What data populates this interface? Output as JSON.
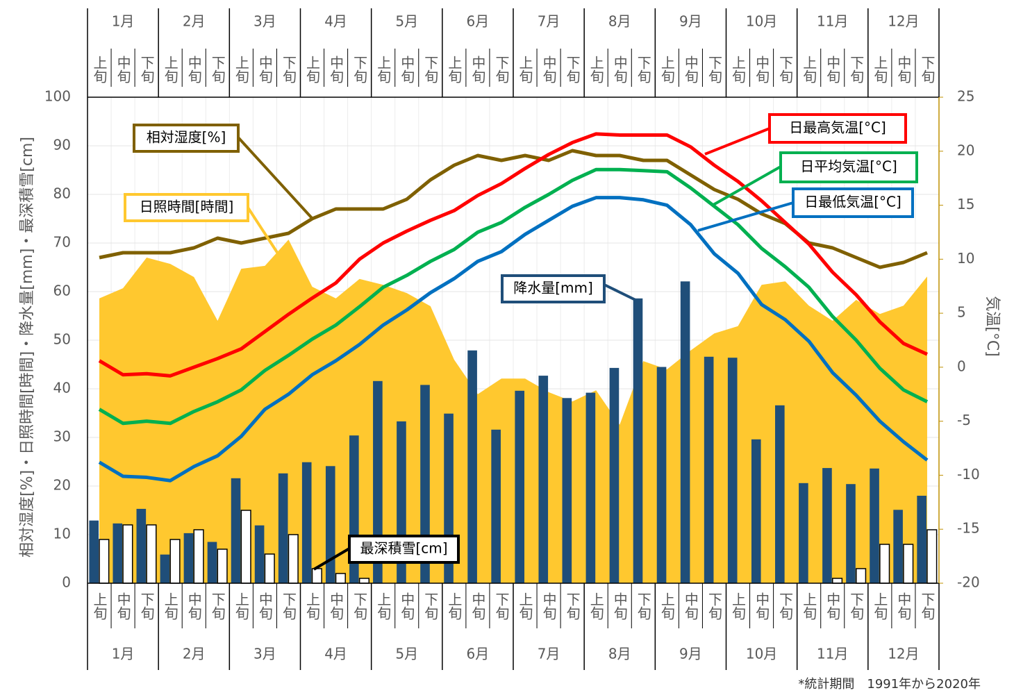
{
  "chart_data": {
    "type": "combo",
    "months": [
      "1月",
      "2月",
      "3月",
      "4月",
      "5月",
      "6月",
      "7月",
      "8月",
      "9月",
      "10月",
      "11月",
      "12月"
    ],
    "categories": [
      "上旬",
      "中旬",
      "下旬",
      "上旬",
      "中旬",
      "下旬",
      "上旬",
      "中旬",
      "下旬",
      "上旬",
      "中旬",
      "下旬",
      "上旬",
      "中旬",
      "下旬",
      "上旬",
      "中旬",
      "下旬",
      "上旬",
      "中旬",
      "下旬",
      "上旬",
      "中旬",
      "下旬",
      "上旬",
      "中旬",
      "下旬",
      "上旬",
      "中旬",
      "下旬",
      "上旬",
      "中旬",
      "下旬",
      "上旬",
      "中旬",
      "下旬"
    ],
    "y_label": "相対湿度[%]・日照時間[時間]・降水量[mm]・最深積雪[cm]",
    "y2_label": "気温[°C]",
    "footnote": "*統計期間　1991年から2020年",
    "ylim": [
      0,
      100
    ],
    "yticks": [
      0,
      10,
      20,
      30,
      40,
      50,
      60,
      70,
      80,
      90,
      100
    ],
    "y2lim": [
      -20,
      25
    ],
    "y2ticks": [
      -20,
      -15,
      -10,
      -5,
      0,
      5,
      10,
      15,
      20,
      25
    ],
    "grid": true,
    "series": [
      {
        "name": "日照時間[時間]",
        "type": "area",
        "color": "#ffc82f",
        "values": [
          58.6,
          60.7,
          67,
          65.7,
          63,
          54,
          64.7,
          65.3,
          70.7,
          61,
          58.6,
          62.6,
          61.4,
          59.7,
          57,
          46,
          38.9,
          42.1,
          42.1,
          39.3,
          37.4,
          39.7,
          32.6,
          45.7,
          44,
          47.9,
          51.4,
          52.9,
          61.4,
          62.1,
          57.1,
          54,
          58.3,
          55.4,
          57.1,
          63.1
        ]
      },
      {
        "name": "降水量[mm]",
        "type": "bar",
        "color": "#1f4e79",
        "values": [
          12.9,
          12.3,
          15.3,
          5.9,
          10.3,
          8.5,
          21.6,
          11.9,
          22.6,
          24.9,
          24.1,
          30.4,
          41.6,
          33.3,
          40.8,
          34.9,
          47.9,
          31.6,
          39.6,
          42.7,
          38.1,
          39.2,
          44.3,
          58.6,
          44.5,
          62.1,
          46.6,
          46.4,
          29.6,
          36.6,
          20.6,
          23.7,
          20.4,
          23.6,
          15.1,
          18
        ]
      },
      {
        "name": "最深積雪[cm]",
        "type": "bar",
        "color": "#ffffff",
        "edgecolor": "#000000",
        "values": [
          9,
          12,
          12,
          9,
          11,
          7,
          15,
          6,
          10,
          3,
          2,
          1,
          0,
          0,
          0,
          0,
          0,
          0,
          0,
          0,
          0,
          0,
          0,
          0,
          0,
          0,
          0,
          0,
          0,
          0,
          0,
          1,
          3,
          8,
          8,
          11
        ]
      },
      {
        "name": "相対湿度[%]",
        "type": "line",
        "color": "#7f6000",
        "values": [
          67,
          68,
          68,
          68,
          69,
          71,
          70,
          71,
          72,
          75,
          77,
          77,
          77,
          79,
          83,
          86,
          88,
          87,
          88,
          87,
          89,
          88,
          88,
          87,
          87,
          84,
          81,
          79,
          76,
          74,
          70,
          69,
          67,
          65,
          66,
          68
        ]
      },
      {
        "name": "日最高気温[°C]",
        "type": "line",
        "axis": "y2",
        "color": "#ff0000",
        "values": [
          0.6,
          -0.7,
          -0.6,
          -0.8,
          0,
          0.8,
          1.7,
          3.3,
          4.9,
          6.4,
          7.8,
          10,
          11.5,
          12.6,
          13.6,
          14.5,
          15.9,
          17,
          18.4,
          19.7,
          20.8,
          21.6,
          21.5,
          21.5,
          21.5,
          20.4,
          18.7,
          17.2,
          15.4,
          13.4,
          11.4,
          8.8,
          6.7,
          4.2,
          2.2,
          1.2
        ]
      },
      {
        "name": "日平均気温[°C]",
        "type": "line",
        "axis": "y2",
        "color": "#00b050",
        "values": [
          -3.9,
          -5.2,
          -5,
          -5.2,
          -4.1,
          -3.2,
          -2.1,
          -0.3,
          1.1,
          2.6,
          3.9,
          5.6,
          7.4,
          8.5,
          9.8,
          10.9,
          12.5,
          13.4,
          14.8,
          16,
          17.3,
          18.3,
          18.3,
          18.2,
          18.1,
          16.6,
          14.9,
          13.2,
          11,
          9.3,
          7.4,
          4.7,
          2.5,
          -0.1,
          -2.1,
          -3.2
        ]
      },
      {
        "name": "日最低気温[°C]",
        "type": "line",
        "axis": "y2",
        "color": "#0070c0",
        "values": [
          -8.8,
          -10.1,
          -10.2,
          -10.5,
          -9.2,
          -8.2,
          -6.4,
          -3.9,
          -2.5,
          -0.7,
          0.6,
          2.1,
          3.9,
          5.3,
          6.9,
          8.2,
          9.8,
          10.7,
          12.3,
          13.6,
          14.9,
          15.7,
          15.7,
          15.5,
          15,
          13.2,
          10.5,
          8.7,
          5.8,
          4.4,
          2.4,
          -0.5,
          -2.6,
          -5,
          -6.9,
          -8.6
        ]
      }
    ]
  }
}
